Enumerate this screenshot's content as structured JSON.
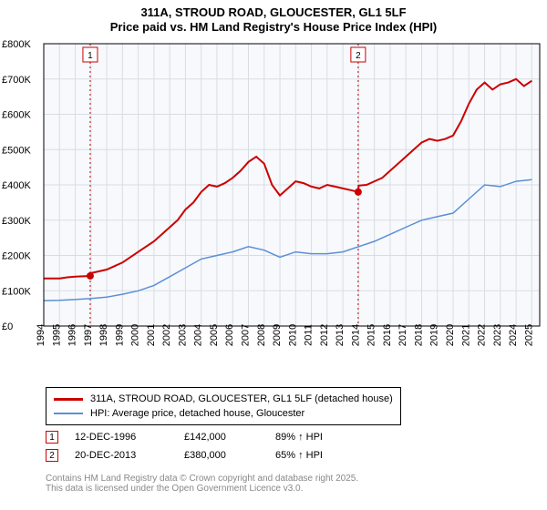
{
  "title_line1": "311A, STROUD ROAD, GLOUCESTER, GL1 5LF",
  "title_line2": "Price paid vs. HM Land Registry's House Price Index (HPI)",
  "chart": {
    "type": "line",
    "plot_bg": "#f7f9fc",
    "outer_bg": "#ffffff",
    "grid_color": "#d8dde4",
    "axis_color": "#000000",
    "x_years": [
      1994,
      1995,
      1996,
      1997,
      1998,
      1999,
      2000,
      2001,
      2002,
      2003,
      2004,
      2005,
      2006,
      2007,
      2008,
      2009,
      2010,
      2011,
      2012,
      2013,
      2014,
      2015,
      2016,
      2017,
      2018,
      2019,
      2020,
      2021,
      2022,
      2023,
      2024,
      2025
    ],
    "x_range": [
      1994,
      2025.5
    ],
    "y_ticks": [
      0,
      100000,
      200000,
      300000,
      400000,
      500000,
      600000,
      700000,
      800000
    ],
    "y_tick_labels": [
      "£0",
      "£100K",
      "£200K",
      "£300K",
      "£400K",
      "£500K",
      "£600K",
      "£700K",
      "£800K"
    ],
    "y_range": [
      0,
      800000
    ],
    "series": [
      {
        "name": "price_paid",
        "color": "#cc0000",
        "width": 2,
        "x": [
          1994,
          1995,
          1995.5,
          1996,
          1996.95,
          1997,
          1998,
          1999,
          2000,
          2001,
          2002,
          2002.5,
          2003,
          2003.5,
          2004,
          2004.5,
          2005,
          2005.5,
          2006,
          2006.5,
          2007,
          2007.5,
          2008,
          2008.5,
          2009,
          2009.5,
          2010,
          2010.5,
          2011,
          2011.5,
          2012,
          2012.5,
          2013,
          2013.5,
          2013.97,
          2014,
          2014.5,
          2015,
          2015.5,
          2016,
          2016.5,
          2017,
          2017.5,
          2018,
          2018.5,
          2019,
          2019.5,
          2020,
          2020.5,
          2021,
          2021.5,
          2022,
          2022.5,
          2023,
          2023.5,
          2024,
          2024.5,
          2025
        ],
        "y": [
          135000,
          135000,
          138000,
          140000,
          142000,
          150000,
          160000,
          180000,
          210000,
          240000,
          280000,
          300000,
          330000,
          350000,
          380000,
          400000,
          395000,
          405000,
          420000,
          440000,
          465000,
          480000,
          460000,
          400000,
          370000,
          390000,
          410000,
          405000,
          395000,
          390000,
          400000,
          395000,
          390000,
          385000,
          380000,
          398000,
          400000,
          410000,
          420000,
          440000,
          460000,
          480000,
          500000,
          520000,
          530000,
          525000,
          530000,
          540000,
          580000,
          630000,
          670000,
          690000,
          670000,
          685000,
          690000,
          700000,
          680000,
          695000
        ]
      },
      {
        "name": "hpi",
        "color": "#5b8fd6",
        "width": 1.5,
        "x": [
          1994,
          1995,
          1996,
          1997,
          1998,
          1999,
          2000,
          2001,
          2002,
          2003,
          2004,
          2005,
          2006,
          2007,
          2008,
          2009,
          2010,
          2011,
          2012,
          2013,
          2014,
          2015,
          2016,
          2017,
          2018,
          2019,
          2020,
          2021,
          2022,
          2023,
          2024,
          2025
        ],
        "y": [
          72000,
          73000,
          75000,
          78000,
          82000,
          90000,
          100000,
          115000,
          140000,
          165000,
          190000,
          200000,
          210000,
          225000,
          215000,
          195000,
          210000,
          205000,
          205000,
          210000,
          225000,
          240000,
          260000,
          280000,
          300000,
          310000,
          320000,
          360000,
          400000,
          395000,
          410000,
          415000
        ]
      }
    ],
    "sale_markers": [
      {
        "n": "1",
        "x": 1996.95,
        "y": 142000
      },
      {
        "n": "2",
        "x": 2013.97,
        "y": 380000
      }
    ]
  },
  "legend": {
    "items": [
      {
        "color": "#cc0000",
        "label": "311A, STROUD ROAD, GLOUCESTER, GL1 5LF (detached house)"
      },
      {
        "color": "#5b8fd6",
        "label": "HPI: Average price, detached house, Gloucester"
      }
    ]
  },
  "sales": [
    {
      "n": "1",
      "date": "12-DEC-1996",
      "price": "£142,000",
      "hpi": "89% ↑ HPI"
    },
    {
      "n": "2",
      "date": "20-DEC-2013",
      "price": "£380,000",
      "hpi": "65% ↑ HPI"
    }
  ],
  "copyright_line1": "Contains HM Land Registry data © Crown copyright and database right 2025.",
  "copyright_line2": "This data is licensed under the Open Government Licence v3.0."
}
